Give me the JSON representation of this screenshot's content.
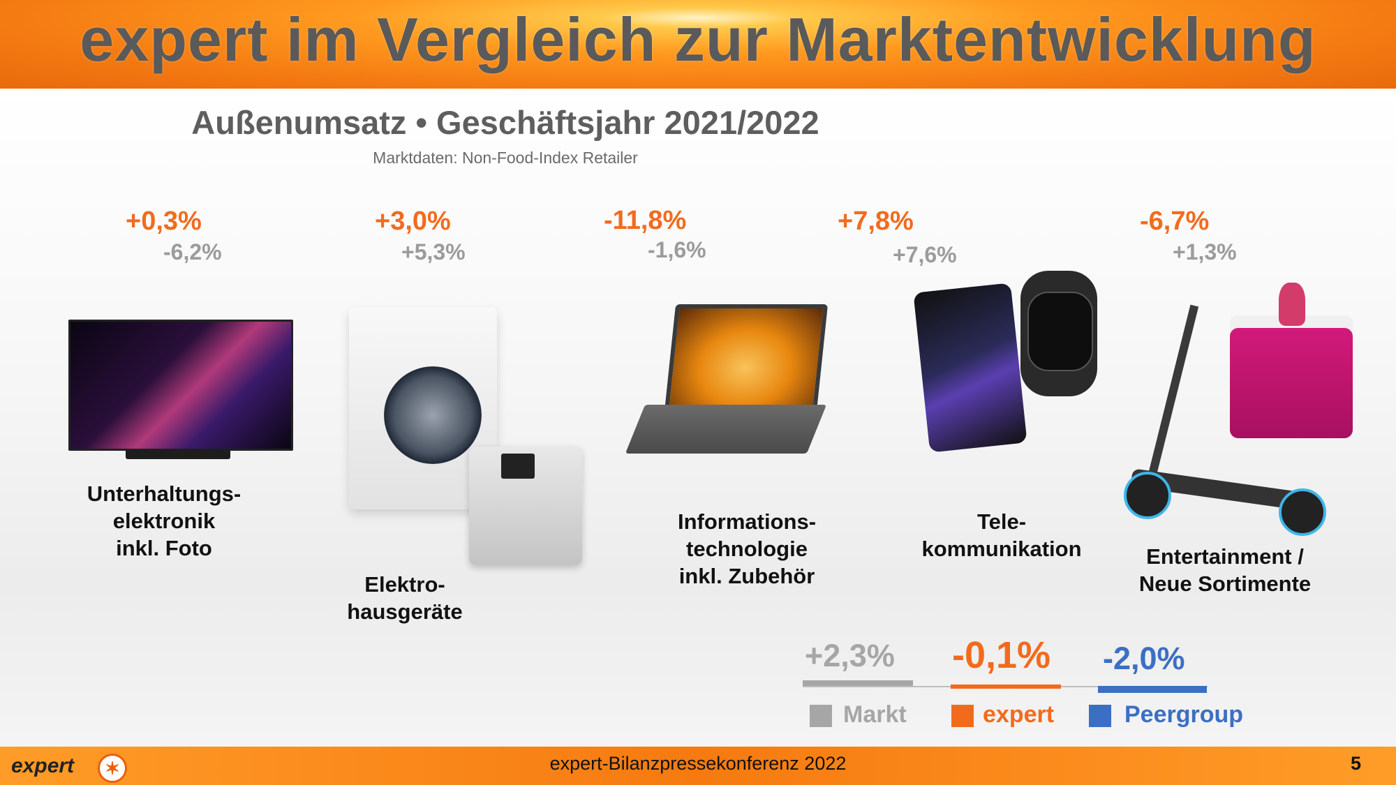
{
  "title": "expert im Vergleich zur Marktentwicklung",
  "subtitle": "Außenumsatz • Geschäftsjahr 2021/2022",
  "source": "Marktdaten: Non-Food-Index Retailer",
  "categories": [
    {
      "label": "Unterhaltungs-\nelektronik\ninkl. Foto",
      "expert": "+0,3%",
      "market": "-6,2%"
    },
    {
      "label": "Elektro-\nhausgeräte",
      "expert": "+3,0%",
      "market": "+5,3%"
    },
    {
      "label": "Informations-\ntechnologie\ninkl. Zubehör",
      "expert": "-11,8%",
      "market": "-1,6%"
    },
    {
      "label": "Tele-\nkommunikation",
      "expert": "+7,8%",
      "market": "+7,6%"
    },
    {
      "label": "Entertainment /\nNeue Sortimente",
      "expert": "-6,7%",
      "market": "+1,3%"
    }
  ],
  "summary": {
    "market": {
      "value": "+2,3%",
      "label": "Markt",
      "color": "#a6a6a6"
    },
    "expert": {
      "value": "-0,1%",
      "label": "expert",
      "color": "#f26b1d"
    },
    "peergroup": {
      "value": "-2,0%",
      "label": "Peergroup",
      "color": "#3b6fc4"
    }
  },
  "footer": {
    "logo": "expert",
    "text": "expert-Bilanzpressekonferenz 2022",
    "page": "5"
  },
  "colors": {
    "accent": "#f26b1d",
    "market_gray": "#9b9b9b",
    "peer_blue": "#3b6fc4"
  }
}
